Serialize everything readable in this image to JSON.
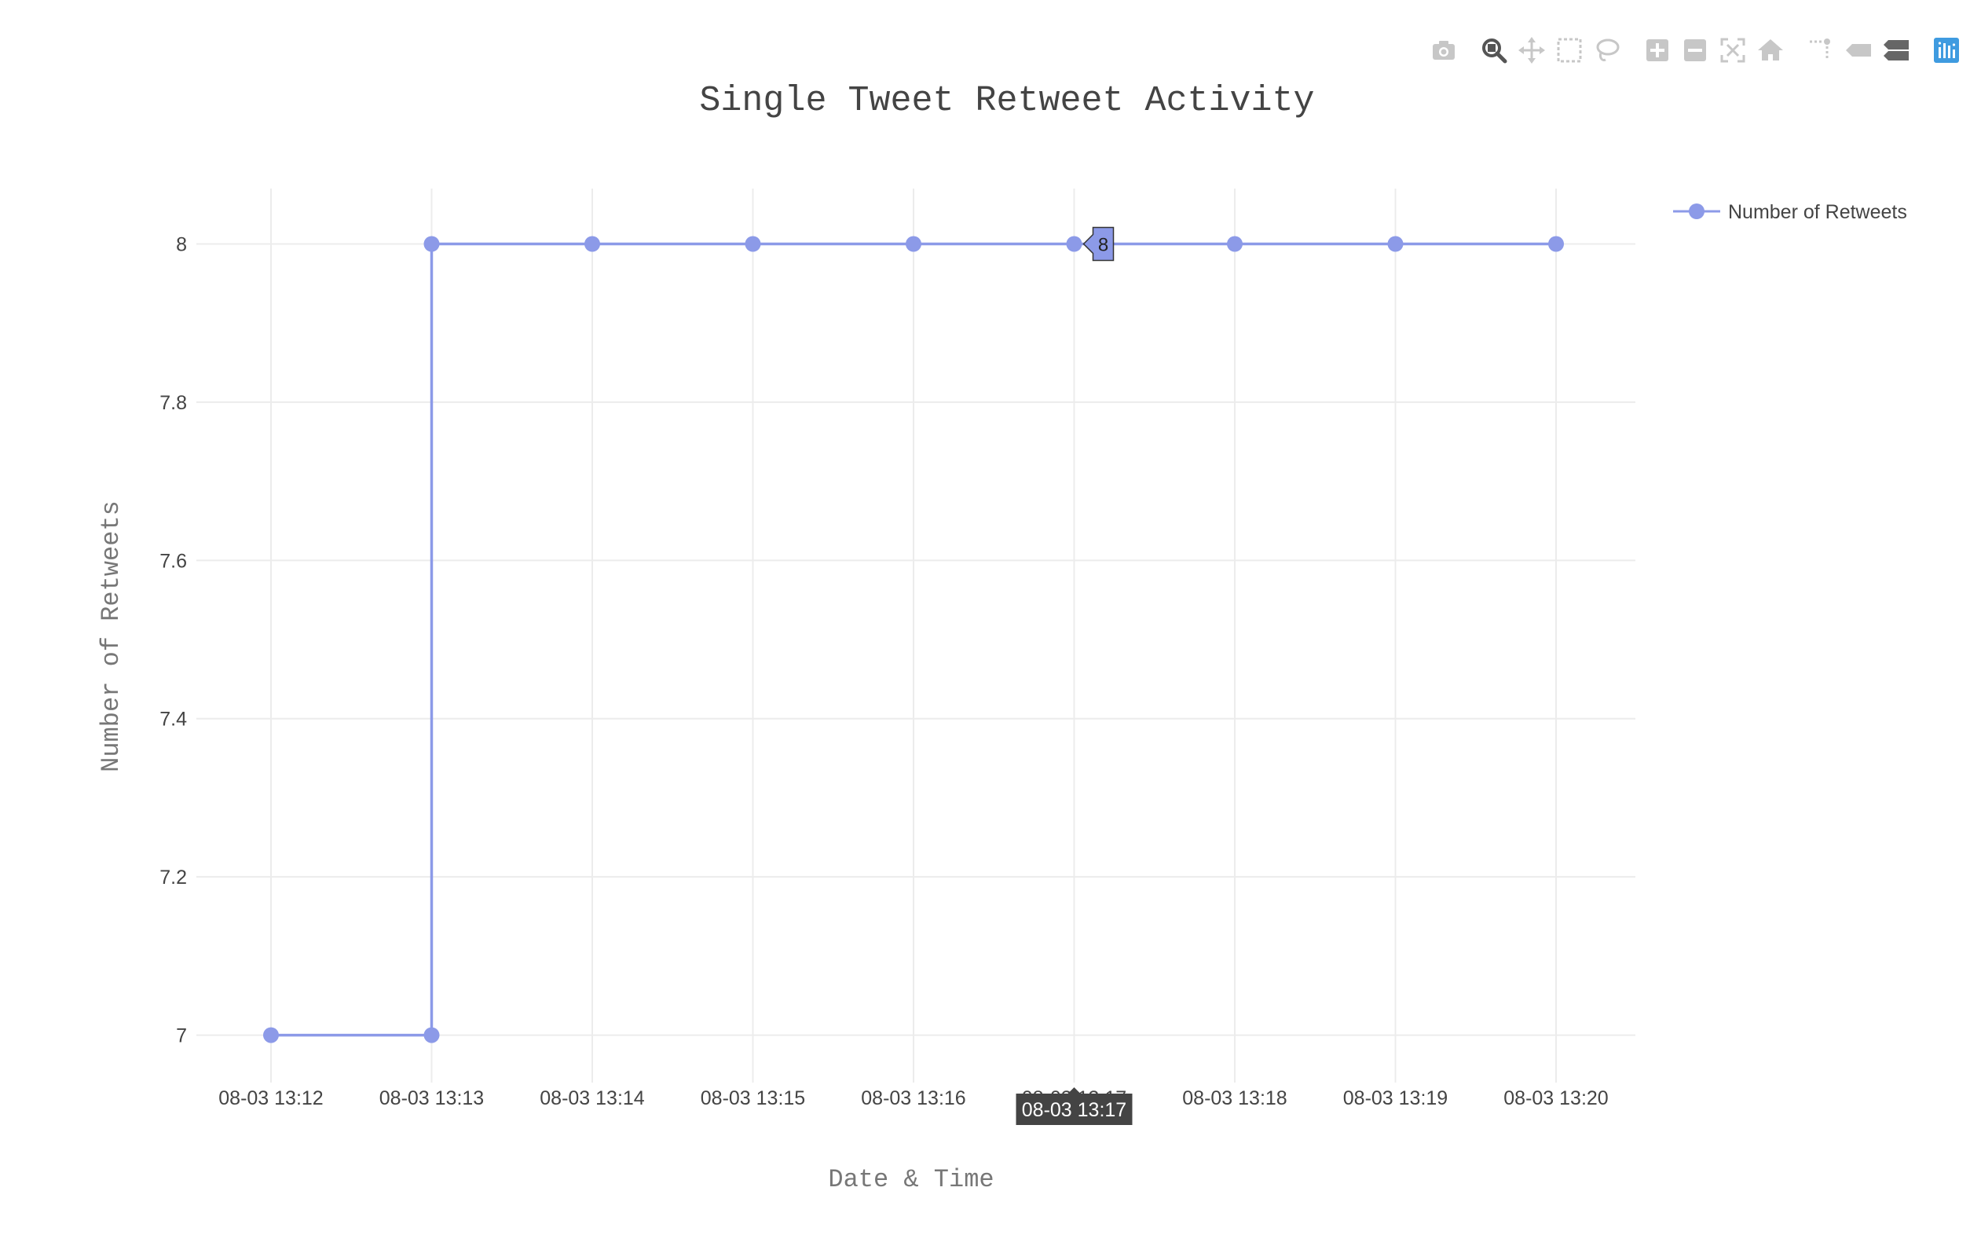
{
  "chart_data": {
    "type": "line",
    "title": "Single Tweet Retweet Activity",
    "xlabel": "Date & Time",
    "ylabel": "Number of Retweets",
    "x": [
      "08-03 13:12",
      "08-03 13:13",
      "08-03 13:13",
      "08-03 13:14",
      "08-03 13:15",
      "08-03 13:16",
      "08-03 13:17",
      "08-03 13:18",
      "08-03 13:19",
      "08-03 13:20"
    ],
    "x_tick_labels": [
      "08-03 13:12",
      "08-03 13:13",
      "08-03 13:14",
      "08-03 13:15",
      "08-03 13:16",
      "08-03 13:17",
      "08-03 13:18",
      "08-03 13:19",
      "08-03 13:20"
    ],
    "y_tick_labels": [
      "7",
      "7.2",
      "7.4",
      "7.6",
      "7.8",
      "8"
    ],
    "y_ticks": [
      7,
      7.2,
      7.4,
      7.6,
      7.8,
      8
    ],
    "ylim": [
      6.94,
      8.07
    ],
    "grid": true,
    "legend_position": "top-right",
    "series": [
      {
        "name": "Number of Retweets",
        "color": "#8c9ae8",
        "values": [
          7,
          7,
          8,
          8,
          8,
          8,
          8,
          8,
          8,
          8
        ]
      }
    ],
    "hover": {
      "x_label": "08-03 13:17",
      "y_label": "8"
    }
  },
  "modebar": {
    "buttons": [
      "camera-icon",
      "zoom-icon",
      "pan-icon",
      "box-select-icon",
      "lasso-icon",
      "zoom-in-icon",
      "zoom-out-icon",
      "autoscale-icon",
      "home-icon",
      "spike-lines-icon",
      "hover-closest-icon",
      "hover-compare-icon",
      "plotly-logo-icon"
    ],
    "active": "zoom-icon",
    "icon_color": "#c7c7c7",
    "active_color": "#555555",
    "logo_color": "#3f9be0"
  }
}
